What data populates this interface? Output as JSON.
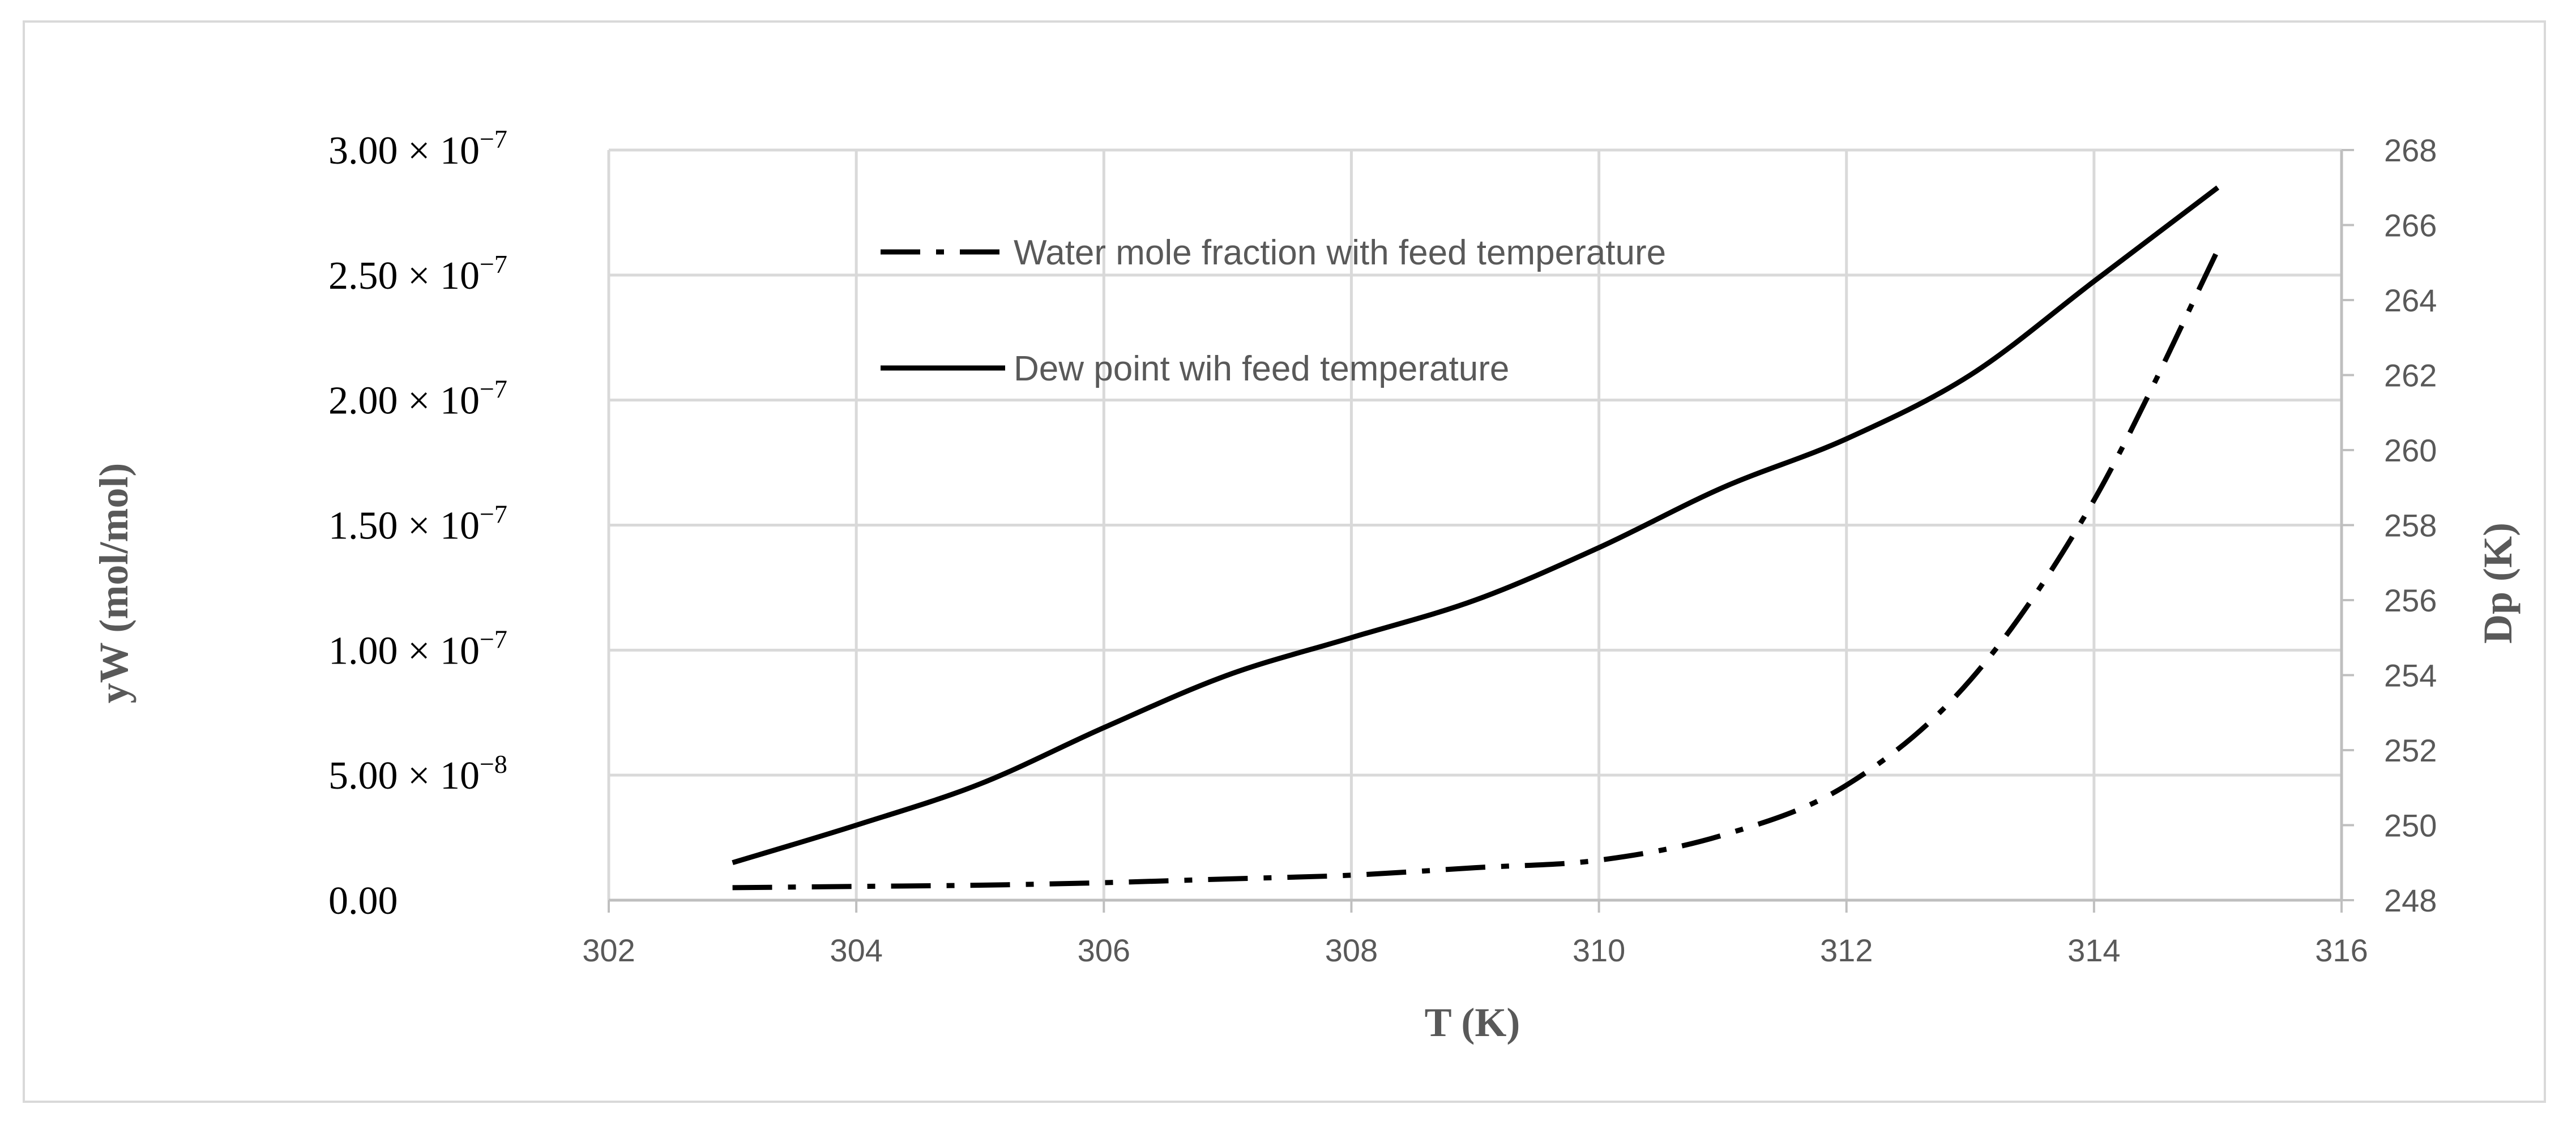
{
  "chart_data": {
    "type": "line",
    "title": "",
    "xlabel": "T (K)",
    "ylabel": "yW (mol/mol)",
    "y2label": "Dp (K)",
    "xlim": [
      302,
      316
    ],
    "ylim": [
      0,
      3e-07
    ],
    "y2lim": [
      248,
      268
    ],
    "x_ticks": [
      "302",
      "304",
      "306",
      "308",
      "310",
      "312",
      "314",
      "316"
    ],
    "y_ticks": [
      {
        "mantissa": "0.00",
        "exp": ""
      },
      {
        "mantissa": "5.00",
        "exp": "−8"
      },
      {
        "mantissa": "1.00",
        "exp": "−7"
      },
      {
        "mantissa": "1.50",
        "exp": "−7"
      },
      {
        "mantissa": "2.00",
        "exp": "−7"
      },
      {
        "mantissa": "2.50",
        "exp": "−7"
      },
      {
        "mantissa": "3.00",
        "exp": "−7"
      }
    ],
    "y2_ticks": [
      "248",
      "250",
      "252",
      "254",
      "256",
      "258",
      "260",
      "262",
      "264",
      "266",
      "268"
    ],
    "grid": true,
    "legend_position": "top-left",
    "series": [
      {
        "name": "Water mole fraction with feed temperature",
        "axis": "left",
        "style": "dash-dot",
        "x": [
          303,
          304,
          305,
          306,
          307,
          308,
          309,
          310,
          311,
          312,
          313,
          314,
          315
        ],
        "values": [
          5e-09,
          5.5e-09,
          6e-09,
          7e-09,
          8.5e-09,
          1e-08,
          1.3e-08,
          1.6e-08,
          2.6e-08,
          4.6e-08,
          8.8e-08,
          1.6e-07,
          2.6e-07
        ]
      },
      {
        "name": "Dew point wih feed temperature",
        "axis": "right",
        "style": "solid",
        "x": [
          303,
          304,
          305,
          306,
          307,
          308,
          309,
          310,
          311,
          312,
          313,
          314,
          315
        ],
        "values": [
          249,
          250,
          251.1,
          252.6,
          254,
          255,
          256,
          257.4,
          259,
          260.3,
          262,
          264.5,
          267
        ]
      }
    ]
  }
}
